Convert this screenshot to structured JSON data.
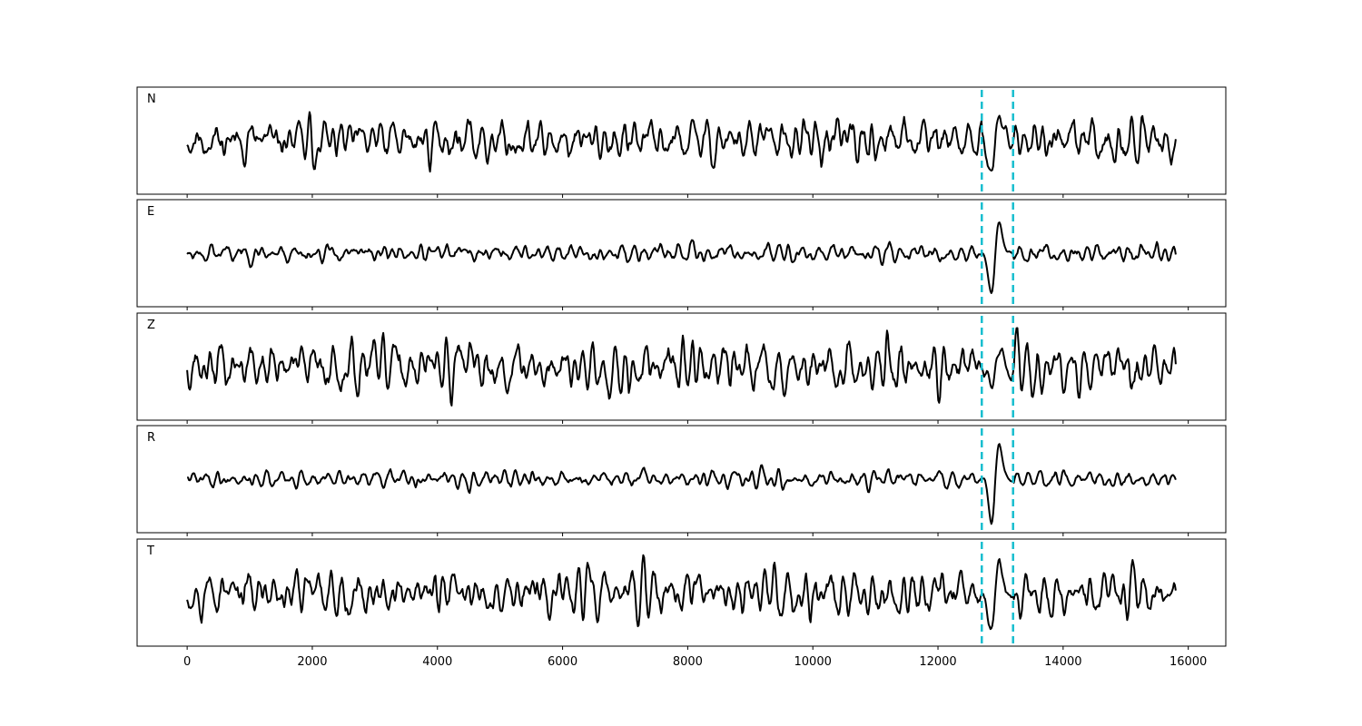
{
  "chart_data": {
    "type": "line",
    "x_range": [
      0,
      15800
    ],
    "xlim": [
      -800,
      16600
    ],
    "x_ticks": [
      0,
      2000,
      4000,
      6000,
      8000,
      10000,
      12000,
      14000,
      16000
    ],
    "x_tick_labels": [
      "0",
      "2000",
      "4000",
      "6000",
      "8000",
      "10000",
      "12000",
      "14000",
      "16000"
    ],
    "grid": false,
    "legend": "none",
    "line_color": "#000000",
    "marker_color": "#17becf",
    "marker_lines_x": [
      12700,
      13200
    ],
    "panels": [
      {
        "label": "N",
        "amplitude": 0.62,
        "event_peak": 0.9,
        "seed": 11
      },
      {
        "label": "E",
        "amplitude": 0.28,
        "event_peak": 0.85,
        "seed": 23
      },
      {
        "label": "Z",
        "amplitude": 0.78,
        "event_peak": 0.5,
        "seed": 37
      },
      {
        "label": "R",
        "amplitude": 0.28,
        "event_peak": 0.9,
        "seed": 41
      },
      {
        "label": "T",
        "amplitude": 0.75,
        "event_peak": 0.85,
        "seed": 53
      }
    ]
  }
}
